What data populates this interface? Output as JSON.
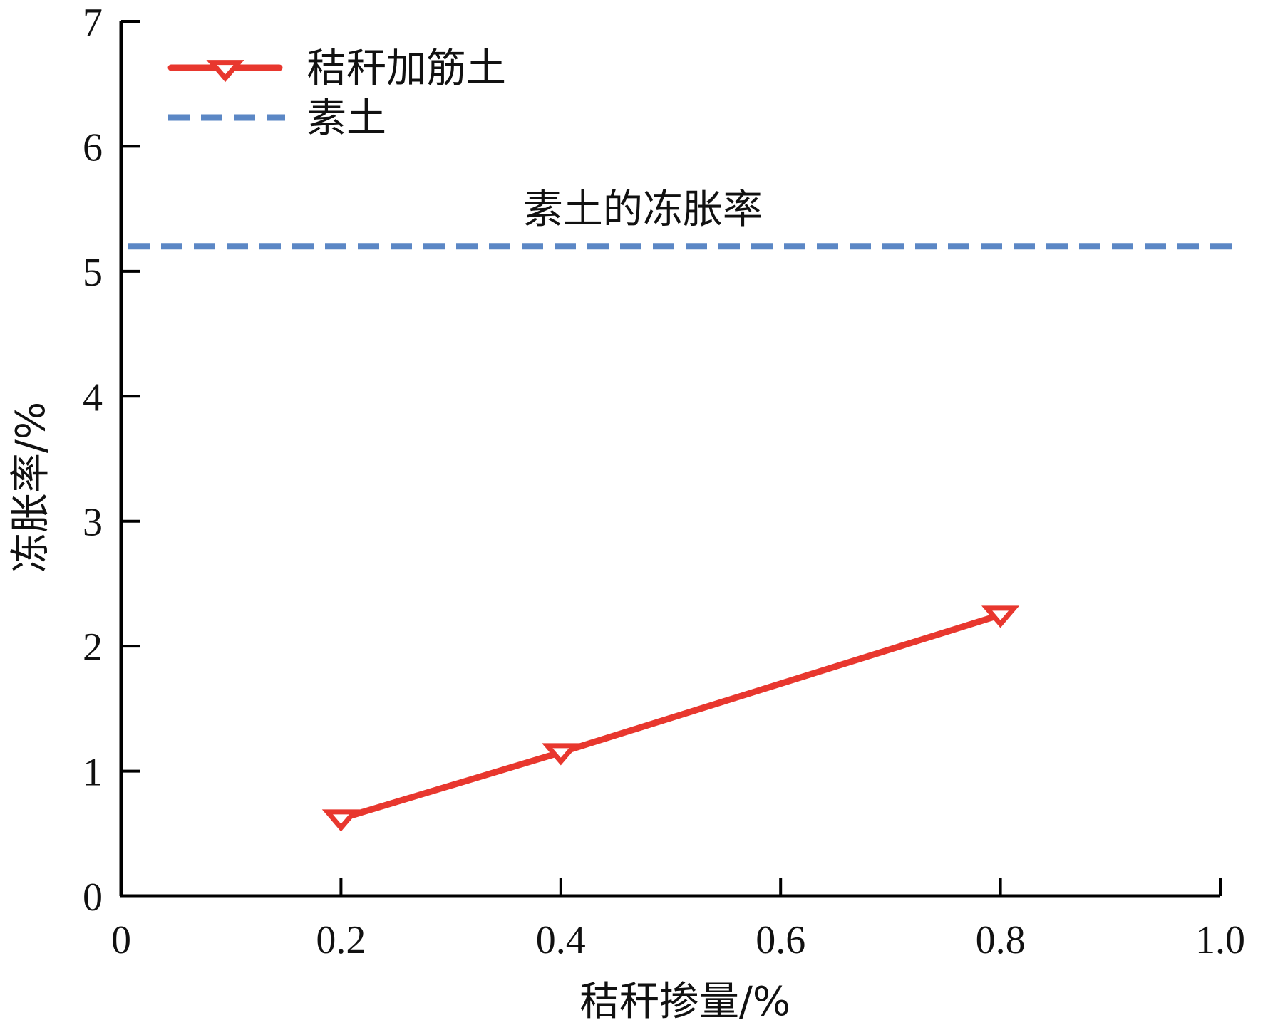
{
  "chart_data": {
    "type": "line",
    "title": "",
    "xlabel": "秸秆掺量/%",
    "ylabel": "冻胀率/%",
    "xlim": [
      0,
      1.0
    ],
    "ylim": [
      0,
      7
    ],
    "x_ticks": [
      0,
      0.2,
      0.4,
      0.6,
      0.8,
      1.0
    ],
    "x_tick_labels": [
      "0",
      "0.2",
      "0.4",
      "0.6",
      "0.8",
      "1.0"
    ],
    "y_ticks": [
      0,
      1,
      2,
      3,
      4,
      5,
      6,
      7
    ],
    "y_tick_labels": [
      "0",
      "1",
      "2",
      "3",
      "4",
      "5",
      "6",
      "7"
    ],
    "grid": false,
    "legend_position": "top-left",
    "series": [
      {
        "name": "秸秆加筋土",
        "x": [
          0.2,
          0.4,
          0.8
        ],
        "y": [
          0.62,
          1.15,
          2.25
        ],
        "color": "#e8372e",
        "style": "solid",
        "marker": "triangle-down"
      }
    ],
    "reference_lines": [
      {
        "name": "素土",
        "y": 5.2,
        "color": "#5b87c5",
        "style": "dashed"
      }
    ],
    "annotations": [
      {
        "text": "素土的冻胀率",
        "x": 0.45,
        "y": 5.5
      }
    ]
  }
}
